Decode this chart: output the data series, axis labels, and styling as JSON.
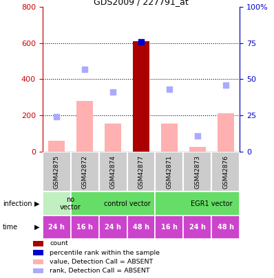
{
  "title": "GDS2009 / 227791_at",
  "samples": [
    "GSM42875",
    "GSM42872",
    "GSM42874",
    "GSM42877",
    "GSM42871",
    "GSM42873",
    "GSM42876"
  ],
  "bar_values": [
    60,
    280,
    155,
    610,
    155,
    25,
    210
  ],
  "bar_colors": [
    "#ffb0b0",
    "#ffb0b0",
    "#ffb0b0",
    "#aa0000",
    "#ffb0b0",
    "#ffb0b0",
    "#ffb0b0"
  ],
  "rank_values_pct": [
    24,
    57,
    41,
    76,
    43,
    11,
    46
  ],
  "rank_colors": [
    "#aaaaff",
    "#aaaaff",
    "#aaaaff",
    "#0000cc",
    "#aaaaff",
    "#aaaaff",
    "#aaaaff"
  ],
  "ylim_left": [
    0,
    800
  ],
  "ylim_right": [
    0,
    100
  ],
  "yticks_left": [
    0,
    200,
    400,
    600,
    800
  ],
  "yticks_right": [
    0,
    25,
    50,
    75,
    100
  ],
  "time_labels": [
    "24 h",
    "16 h",
    "24 h",
    "48 h",
    "16 h",
    "24 h",
    "48 h"
  ],
  "time_color": "#cc44cc",
  "inf_groups": [
    {
      "start": 0,
      "end": 1,
      "label": "no\nvector",
      "color": "#c0f0c0"
    },
    {
      "start": 1,
      "end": 4,
      "label": "control vector",
      "color": "#66dd66"
    },
    {
      "start": 4,
      "end": 7,
      "label": "EGR1 vector",
      "color": "#66dd66"
    }
  ],
  "legend_items": [
    {
      "color": "#aa0000",
      "label": "count"
    },
    {
      "color": "#0000cc",
      "label": "percentile rank within the sample"
    },
    {
      "color": "#ffb0b0",
      "label": "value, Detection Call = ABSENT"
    },
    {
      "color": "#aaaaff",
      "label": "rank, Detection Call = ABSENT"
    }
  ],
  "grid_lines": [
    200,
    400,
    600
  ],
  "bar_width": 0.6,
  "sample_box_color": "#cccccc",
  "left_axis_color": "#cc0000",
  "right_axis_color": "#0000cc"
}
